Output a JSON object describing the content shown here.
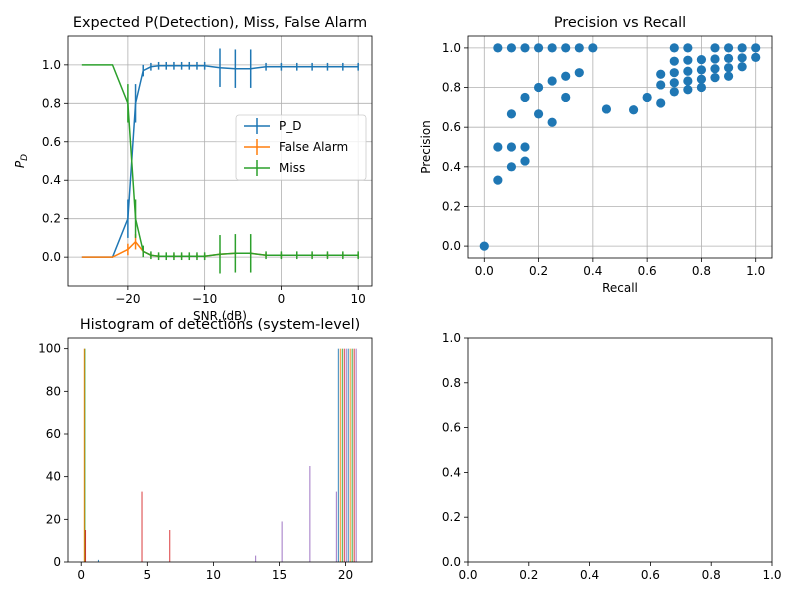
{
  "colors": {
    "blue": "#1f77b4",
    "orange": "#ff7f0e",
    "green": "#2ca02c",
    "red": "#d62728",
    "purple": "#9467bd",
    "grid": "#b0b0b0"
  },
  "chart_data": [
    {
      "id": "p1",
      "type": "line",
      "title": "Expected P(Detection), Miss, False Alarm",
      "xlabel": "SNR (dB)",
      "ylabel": "P_D",
      "xlim": [
        -27.8,
        11.8
      ],
      "ylim": [
        -0.15,
        1.15
      ],
      "xticks": [
        -20,
        -10,
        0,
        10
      ],
      "xtick_labels": [
        "−20",
        "−10",
        "0",
        "10"
      ],
      "yticks": [
        0.0,
        0.2,
        0.4,
        0.6,
        0.8,
        1.0
      ],
      "ytick_labels": [
        "0.0",
        "0.2",
        "0.4",
        "0.6",
        "0.8",
        "1.0"
      ],
      "grid": true,
      "legend": "center-right",
      "x": [
        -26,
        -24,
        -22,
        -20,
        -19,
        -18,
        -17,
        -16,
        -15,
        -14,
        -13,
        -12,
        -11,
        -10,
        -8,
        -6,
        -4,
        -2,
        0,
        2,
        4,
        6,
        8,
        10
      ],
      "series": [
        {
          "name": "P_D",
          "color": "#1f77b4",
          "values": [
            0.0,
            0.0,
            0.0,
            0.2,
            0.8,
            0.97,
            0.99,
            0.995,
            0.995,
            0.995,
            0.995,
            0.995,
            0.995,
            0.995,
            0.985,
            0.98,
            0.98,
            0.99,
            0.99,
            0.99,
            0.99,
            0.99,
            0.99,
            0.99
          ],
          "errors": [
            0,
            0,
            0,
            0.1,
            0.1,
            0.03,
            0.02,
            0.02,
            0.02,
            0.02,
            0.02,
            0.02,
            0.02,
            0.02,
            0.1,
            0.1,
            0.1,
            0.02,
            0.02,
            0.02,
            0.02,
            0.02,
            0.02,
            0.02
          ]
        },
        {
          "name": "False Alarm",
          "color": "#ff7f0e",
          "values": [
            0.0,
            0.0,
            0.0,
            0.04,
            0.08,
            0.03,
            0.01,
            0.005,
            0.005,
            0.005,
            0.005,
            0.005,
            0.005,
            0.005,
            0.015,
            0.02,
            0.02,
            0.01,
            0.01,
            0.01,
            0.01,
            0.01,
            0.01,
            0.01
          ],
          "errors": [
            0,
            0,
            0,
            0.03,
            0.04,
            0.02,
            0.01,
            0.01,
            0.01,
            0.01,
            0.01,
            0.01,
            0.01,
            0.01,
            0.01,
            0.01,
            0.01,
            0.01,
            0.01,
            0.01,
            0.01,
            0.01,
            0.01,
            0.01
          ]
        },
        {
          "name": "Miss",
          "color": "#2ca02c",
          "values": [
            1.0,
            1.0,
            1.0,
            0.8,
            0.2,
            0.03,
            0.01,
            0.005,
            0.005,
            0.005,
            0.005,
            0.005,
            0.005,
            0.005,
            0.015,
            0.02,
            0.02,
            0.01,
            0.01,
            0.01,
            0.01,
            0.01,
            0.01,
            0.01
          ],
          "errors": [
            0,
            0,
            0,
            0.1,
            0.1,
            0.03,
            0.02,
            0.02,
            0.02,
            0.02,
            0.02,
            0.02,
            0.02,
            0.02,
            0.1,
            0.1,
            0.1,
            0.02,
            0.02,
            0.02,
            0.02,
            0.02,
            0.02,
            0.02
          ]
        }
      ]
    },
    {
      "id": "p2",
      "type": "scatter",
      "title": "Precision vs Recall",
      "xlabel": "Recall",
      "ylabel": "Precision",
      "xlim": [
        -0.06,
        1.06
      ],
      "ylim": [
        -0.06,
        1.06
      ],
      "xticks": [
        0.0,
        0.2,
        0.4,
        0.6,
        0.8,
        1.0
      ],
      "xtick_labels": [
        "0.0",
        "0.2",
        "0.4",
        "0.6",
        "0.8",
        "1.0"
      ],
      "yticks": [
        0.0,
        0.2,
        0.4,
        0.6,
        0.8,
        1.0
      ],
      "ytick_labels": [
        "0.0",
        "0.2",
        "0.4",
        "0.6",
        "0.8",
        "1.0"
      ],
      "grid": true,
      "color": "#1f77b4",
      "points": [
        [
          0.0,
          0.0
        ],
        [
          0.05,
          1.0
        ],
        [
          0.1,
          1.0
        ],
        [
          0.15,
          1.0
        ],
        [
          0.2,
          1.0
        ],
        [
          0.25,
          1.0
        ],
        [
          0.3,
          1.0
        ],
        [
          0.35,
          1.0
        ],
        [
          0.4,
          1.0
        ],
        [
          0.05,
          0.5
        ],
        [
          0.05,
          0.333
        ],
        [
          0.1,
          0.667
        ],
        [
          0.1,
          0.5
        ],
        [
          0.1,
          0.4
        ],
        [
          0.15,
          0.75
        ],
        [
          0.15,
          0.5
        ],
        [
          0.15,
          0.429
        ],
        [
          0.2,
          0.8
        ],
        [
          0.2,
          0.667
        ],
        [
          0.25,
          0.833
        ],
        [
          0.25,
          0.625
        ],
        [
          0.3,
          0.857
        ],
        [
          0.3,
          0.75
        ],
        [
          0.35,
          0.875
        ],
        [
          0.45,
          0.692
        ],
        [
          0.55,
          0.688
        ],
        [
          0.6,
          0.75
        ],
        [
          0.65,
          0.867
        ],
        [
          0.65,
          0.722
        ],
        [
          0.65,
          0.813
        ],
        [
          0.7,
          1.0
        ],
        [
          0.7,
          0.933
        ],
        [
          0.7,
          0.875
        ],
        [
          0.7,
          0.824
        ],
        [
          0.7,
          0.778
        ],
        [
          0.75,
          1.0
        ],
        [
          0.75,
          0.938
        ],
        [
          0.75,
          0.882
        ],
        [
          0.75,
          0.833
        ],
        [
          0.75,
          0.789
        ],
        [
          0.8,
          0.941
        ],
        [
          0.8,
          0.889
        ],
        [
          0.8,
          0.842
        ],
        [
          0.8,
          0.8
        ],
        [
          0.85,
          1.0
        ],
        [
          0.85,
          0.944
        ],
        [
          0.85,
          0.895
        ],
        [
          0.85,
          0.85
        ],
        [
          0.9,
          1.0
        ],
        [
          0.9,
          0.947
        ],
        [
          0.9,
          0.9
        ],
        [
          0.9,
          0.857
        ],
        [
          0.95,
          1.0
        ],
        [
          0.95,
          0.95
        ],
        [
          0.95,
          0.905
        ],
        [
          1.0,
          1.0
        ],
        [
          1.0,
          0.952
        ]
      ]
    },
    {
      "id": "p3",
      "type": "bar",
      "title": "Histogram of detections (system-level)",
      "xlim": [
        -1.0,
        22.0
      ],
      "ylim": [
        0,
        105
      ],
      "xticks": [
        0,
        5,
        10,
        15,
        20
      ],
      "xtick_labels": [
        "0",
        "5",
        "10",
        "15",
        "20"
      ],
      "yticks": [
        0,
        20,
        40,
        60,
        80,
        100
      ],
      "ytick_labels": [
        "0",
        "20",
        "40",
        "60",
        "80",
        "100"
      ],
      "grid": false,
      "bars": [
        {
          "x": 0.28,
          "h": 100,
          "color": "#2ca02c"
        },
        {
          "x": 0.33,
          "h": 15,
          "color": "#d62728"
        },
        {
          "x": 0.23,
          "h": 100,
          "color": "#ff7f0e"
        },
        {
          "x": 1.3,
          "h": 1,
          "color": "#1f77b4"
        },
        {
          "x": 4.6,
          "h": 33,
          "color": "#d62728"
        },
        {
          "x": 6.7,
          "h": 15,
          "color": "#d62728"
        },
        {
          "x": 13.2,
          "h": 3,
          "color": "#9467bd"
        },
        {
          "x": 15.2,
          "h": 19,
          "color": "#9467bd"
        },
        {
          "x": 17.3,
          "h": 45,
          "color": "#9467bd"
        },
        {
          "x": 19.3,
          "h": 33,
          "color": "#9467bd"
        },
        {
          "x": 19.45,
          "h": 100,
          "color": "#1f77b4"
        },
        {
          "x": 19.6,
          "h": 100,
          "color": "#ff7f0e"
        },
        {
          "x": 19.75,
          "h": 100,
          "color": "#2ca02c"
        },
        {
          "x": 19.9,
          "h": 100,
          "color": "#d62728"
        },
        {
          "x": 20.05,
          "h": 100,
          "color": "#9467bd"
        },
        {
          "x": 20.2,
          "h": 100,
          "color": "#1f77b4"
        },
        {
          "x": 20.35,
          "h": 100,
          "color": "#ff7f0e"
        },
        {
          "x": 20.5,
          "h": 100,
          "color": "#2ca02c"
        },
        {
          "x": 20.65,
          "h": 100,
          "color": "#d62728"
        },
        {
          "x": 20.8,
          "h": 100,
          "color": "#9467bd"
        }
      ]
    },
    {
      "id": "p4",
      "type": "line",
      "title": "",
      "xlim": [
        0,
        1
      ],
      "ylim": [
        0,
        1
      ],
      "xticks": [
        0.0,
        0.2,
        0.4,
        0.6,
        0.8,
        1.0
      ],
      "xtick_labels": [
        "0.0",
        "0.2",
        "0.4",
        "0.6",
        "0.8",
        "1.0"
      ],
      "yticks": [
        0.0,
        0.2,
        0.4,
        0.6,
        0.8,
        1.0
      ],
      "ytick_labels": [
        "0.0",
        "0.2",
        "0.4",
        "0.6",
        "0.8",
        "1.0"
      ],
      "grid": false,
      "series": []
    }
  ]
}
